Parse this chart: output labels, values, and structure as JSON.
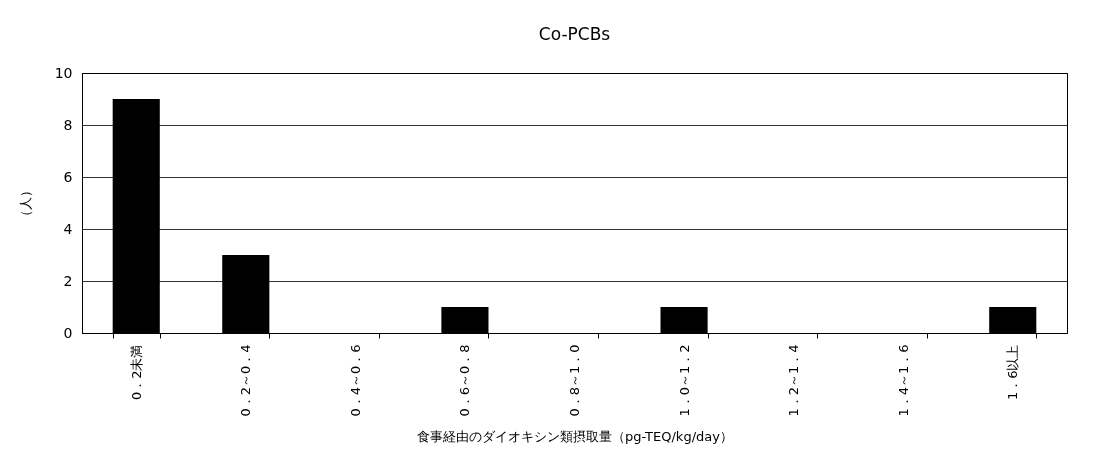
{
  "chart_data": {
    "type": "bar",
    "title": "Co-PCBs",
    "xlabel": "食事経由のダイオキシン類摂取量（pg-TEQ/kg/day）",
    "ylabel": "（人）",
    "categories": [
      "0．2未満",
      "0．2～0．4",
      "0．4～0．6",
      "0．6～0．8",
      "0．8～1．0",
      "1．0～1．2",
      "1．2～1．4",
      "1．4～1．6",
      "1．6以上"
    ],
    "values": [
      9,
      3,
      0,
      1,
      0,
      1,
      0,
      0,
      1
    ],
    "color": "#000000",
    "ylim": [
      0,
      10
    ],
    "yticks": [
      0,
      2,
      4,
      6,
      8,
      10
    ],
    "grid": "y"
  }
}
